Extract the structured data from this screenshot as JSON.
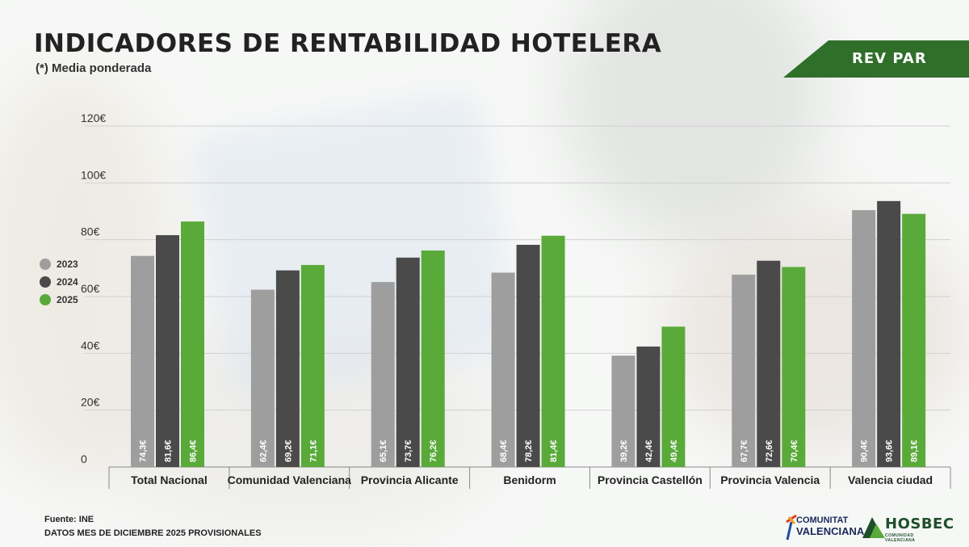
{
  "header": {
    "title": "INDICADORES DE RENTABILIDAD HOTELERA",
    "subtitle": "(*) Media ponderada",
    "banner": "REV PAR"
  },
  "footer": {
    "source": "Fuente: INE",
    "note": "DATOS MES DE DICIEMBRE 2025 PROVISIONALES"
  },
  "logos": {
    "cv_line1": "COMUNITAT",
    "cv_line2": "VALENCIANA",
    "hosbec": "HOSBEC",
    "hosbec_sub": "COMUNIDAD VALENCIANA"
  },
  "colors": {
    "series_2023": "#9e9e9e",
    "series_2024": "#4a4a4a",
    "series_2025": "#5aaa3a",
    "banner": "#2f6f2a"
  },
  "chart_data": {
    "type": "bar",
    "categories": [
      "Total Nacional",
      "Comunidad Valenciana",
      "Provincia Alicante",
      "Benidorm",
      "Provincia Castellón",
      "Provincia Valencia",
      "Valencia ciudad"
    ],
    "series": [
      {
        "name": "2023",
        "values": [
          74.3,
          62.4,
          65.1,
          68.4,
          39.2,
          67.7,
          90.4
        ],
        "labels": [
          "74,3€",
          "62,4€",
          "65,1€",
          "68,4€",
          "39,2€",
          "67,7€",
          "90,4€"
        ]
      },
      {
        "name": "2024",
        "values": [
          81.6,
          69.2,
          73.7,
          78.2,
          42.4,
          72.6,
          93.6
        ],
        "labels": [
          "81,6€",
          "69,2€",
          "73,7€",
          "78,2€",
          "42,4€",
          "72,6€",
          "93,6€"
        ]
      },
      {
        "name": "2025",
        "values": [
          86.4,
          71.1,
          76.2,
          81.4,
          49.4,
          70.4,
          89.1
        ],
        "labels": [
          "86,4€",
          "71,1€",
          "76,2€",
          "81,4€",
          "49,4€",
          "70,4€",
          "89,1€"
        ]
      }
    ],
    "y_ticks": [
      "0",
      "20€",
      "40€",
      "60€",
      "80€",
      "100€",
      "120€"
    ],
    "y_tick_values": [
      0,
      20,
      40,
      60,
      80,
      100,
      120
    ],
    "ylim": [
      0,
      120
    ],
    "grid": true,
    "legend_position": "left"
  }
}
